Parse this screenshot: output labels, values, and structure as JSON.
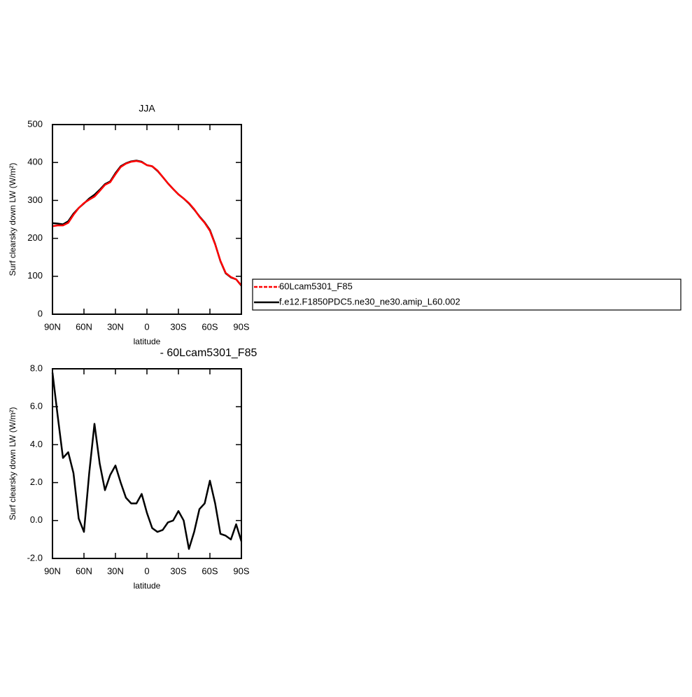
{
  "chart_data": [
    {
      "type": "line",
      "title": "JJA",
      "xlabel": "latitude",
      "ylabel": "Surf clearsky down LW (W/m²)",
      "x": [
        90,
        85,
        80,
        75,
        70,
        65,
        60,
        55,
        50,
        45,
        40,
        35,
        30,
        25,
        20,
        15,
        10,
        5,
        0,
        -5,
        -10,
        -15,
        -20,
        -25,
        -30,
        -35,
        -40,
        -45,
        -50,
        -55,
        -60,
        -65,
        -70,
        -75,
        -80,
        -85,
        -90
      ],
      "xlim": [
        90,
        -90
      ],
      "xticks": [
        {
          "value": 90,
          "label": "90N"
        },
        {
          "value": 60,
          "label": "60N"
        },
        {
          "value": 30,
          "label": "30N"
        },
        0,
        {
          "value": -30,
          "label": "30S"
        },
        {
          "value": -60,
          "label": "60S"
        },
        {
          "value": -90,
          "label": "90S"
        }
      ],
      "ylim": [
        0,
        500
      ],
      "yticks": [
        0,
        100,
        200,
        300,
        400,
        500
      ],
      "legend": "right",
      "series": [
        {
          "name": "60Lcam5301_F85",
          "color": "#ff0000",
          "values": [
            232,
            234,
            234,
            241,
            262,
            280,
            293,
            302,
            310,
            325,
            341,
            348,
            369,
            388,
            397,
            402,
            404,
            401,
            393,
            390,
            379,
            362,
            345,
            330,
            316,
            305,
            293,
            277,
            257,
            241,
            220,
            184,
            141,
            109,
            98,
            92,
            76
          ]
        },
        {
          "name": "f.e12.F1850PDC5.ne30_ne30.amip_L60.002",
          "color": "#000000",
          "values": [
            240,
            239,
            237,
            245,
            265,
            280,
            292,
            305,
            315,
            328,
            343,
            350,
            372,
            390,
            398,
            403,
            405,
            402,
            393,
            390,
            378,
            362,
            345,
            330,
            316,
            305,
            292,
            276,
            258,
            242,
            222,
            185,
            140,
            108,
            97,
            92,
            75
          ]
        }
      ]
    },
    {
      "type": "line",
      "title": "- 60Lcam5301_F85",
      "xlabel": "latitude",
      "ylabel": "Surf clearsky down LW (W/m²)",
      "x": [
        90,
        85,
        80,
        75,
        70,
        65,
        60,
        55,
        50,
        45,
        40,
        35,
        30,
        25,
        20,
        15,
        10,
        5,
        0,
        -5,
        -10,
        -15,
        -20,
        -25,
        -30,
        -35,
        -40,
        -45,
        -50,
        -55,
        -60,
        -65,
        -70,
        -75,
        -80,
        -85,
        -90
      ],
      "xlim": [
        90,
        -90
      ],
      "xticks": [
        {
          "value": 90,
          "label": "90N"
        },
        {
          "value": 60,
          "label": "60N"
        },
        {
          "value": 30,
          "label": "30N"
        },
        0,
        {
          "value": -30,
          "label": "30S"
        },
        {
          "value": -60,
          "label": "60S"
        },
        {
          "value": -90,
          "label": "90S"
        }
      ],
      "ylim": [
        -2,
        8
      ],
      "yticks": [
        {
          "value": -2,
          "label": "-2.0"
        },
        {
          "value": 0,
          "label": "0.0"
        },
        {
          "value": 2,
          "label": "2.0"
        },
        {
          "value": 4,
          "label": "4.0"
        },
        {
          "value": 6,
          "label": "6.0"
        },
        {
          "value": 8,
          "label": "8.0"
        }
      ],
      "color": "#000000",
      "values": [
        7.8,
        5.5,
        3.3,
        3.6,
        2.5,
        0.1,
        -0.6,
        2.5,
        5.1,
        3.0,
        1.6,
        2.4,
        2.9,
        2.0,
        1.2,
        0.9,
        0.9,
        1.4,
        0.4,
        -0.4,
        -0.6,
        -0.5,
        -0.1,
        0.0,
        0.5,
        0.0,
        -1.5,
        -0.6,
        0.6,
        0.9,
        2.1,
        0.9,
        -0.7,
        -0.8,
        -1.0,
        -0.2,
        -1.1
      ]
    }
  ]
}
